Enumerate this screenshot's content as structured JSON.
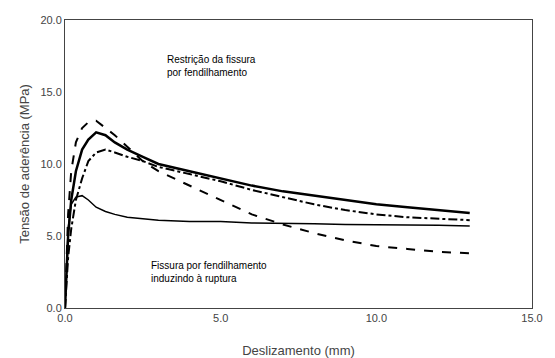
{
  "chart_data": {
    "type": "line",
    "xlabel": "Deslizamento (mm)",
    "ylabel": "Tensão de aderência (MPa)",
    "x": [
      0,
      0.05,
      0.1,
      0.2,
      0.35,
      0.55,
      0.75,
      1.0,
      1.3,
      1.6,
      2.0,
      2.5,
      3.0,
      4.0,
      5.0,
      6.0,
      7.0,
      8.0,
      9.0,
      10.0,
      11.0,
      12.0,
      13.0
    ],
    "series": [
      {
        "color": "black",
        "line_style": "solid",
        "values": [
          0,
          2.5,
          5.0,
          7.5,
          9.5,
          11.0,
          11.7,
          12.2,
          12.0,
          11.5,
          11.0,
          10.5,
          10.0,
          9.5,
          9.0,
          8.5,
          8.1,
          7.8,
          7.5,
          7.2,
          7.0,
          6.8,
          6.6
        ]
      },
      {
        "color": "black",
        "line_style": "dash",
        "values": [
          0,
          3.0,
          6.5,
          9.5,
          11.5,
          12.5,
          12.9,
          13.0,
          12.5,
          12.0,
          11.2,
          10.2,
          9.5,
          8.5,
          7.5,
          6.5,
          5.8,
          5.2,
          4.7,
          4.3,
          4.1,
          3.9,
          3.8
        ]
      },
      {
        "color": "black",
        "line_style": "dashdot",
        "values": [
          0,
          1.8,
          3.5,
          5.5,
          7.5,
          9.0,
          10.2,
          10.8,
          11.0,
          10.8,
          10.5,
          10.2,
          9.8,
          9.3,
          8.8,
          8.2,
          7.7,
          7.2,
          6.8,
          6.5,
          6.3,
          6.2,
          6.1
        ]
      },
      {
        "color": "black",
        "line_style": "solid",
        "values": [
          0,
          2.8,
          5.5,
          7.2,
          7.7,
          7.8,
          7.5,
          7.0,
          6.7,
          6.5,
          6.3,
          6.2,
          6.1,
          6.0,
          6.0,
          5.9,
          5.9,
          5.85,
          5.8,
          5.8,
          5.75,
          5.75,
          5.7
        ]
      }
    ],
    "xlim": [
      0.0,
      15.0
    ],
    "ylim": [
      0.0,
      20.0
    ],
    "xticks": [
      {
        "value": 0,
        "label": "0.0"
      },
      {
        "value": 5,
        "label": "5.0"
      },
      {
        "value": 10,
        "label": "10.0"
      },
      {
        "value": 15,
        "label": "15.0"
      }
    ],
    "yticks": [
      {
        "value": 0,
        "label": "0.0"
      },
      {
        "value": 5,
        "label": "5.0"
      },
      {
        "value": 10,
        "label": "10.0"
      },
      {
        "value": 15,
        "label": "15.0"
      },
      {
        "value": 20,
        "label": "20.0"
      }
    ],
    "annotations": [
      "Restrição da fissura\npor fendilhamento",
      "Fissura por fendilhamento\ninduzindo à ruptura"
    ],
    "grid": false
  }
}
